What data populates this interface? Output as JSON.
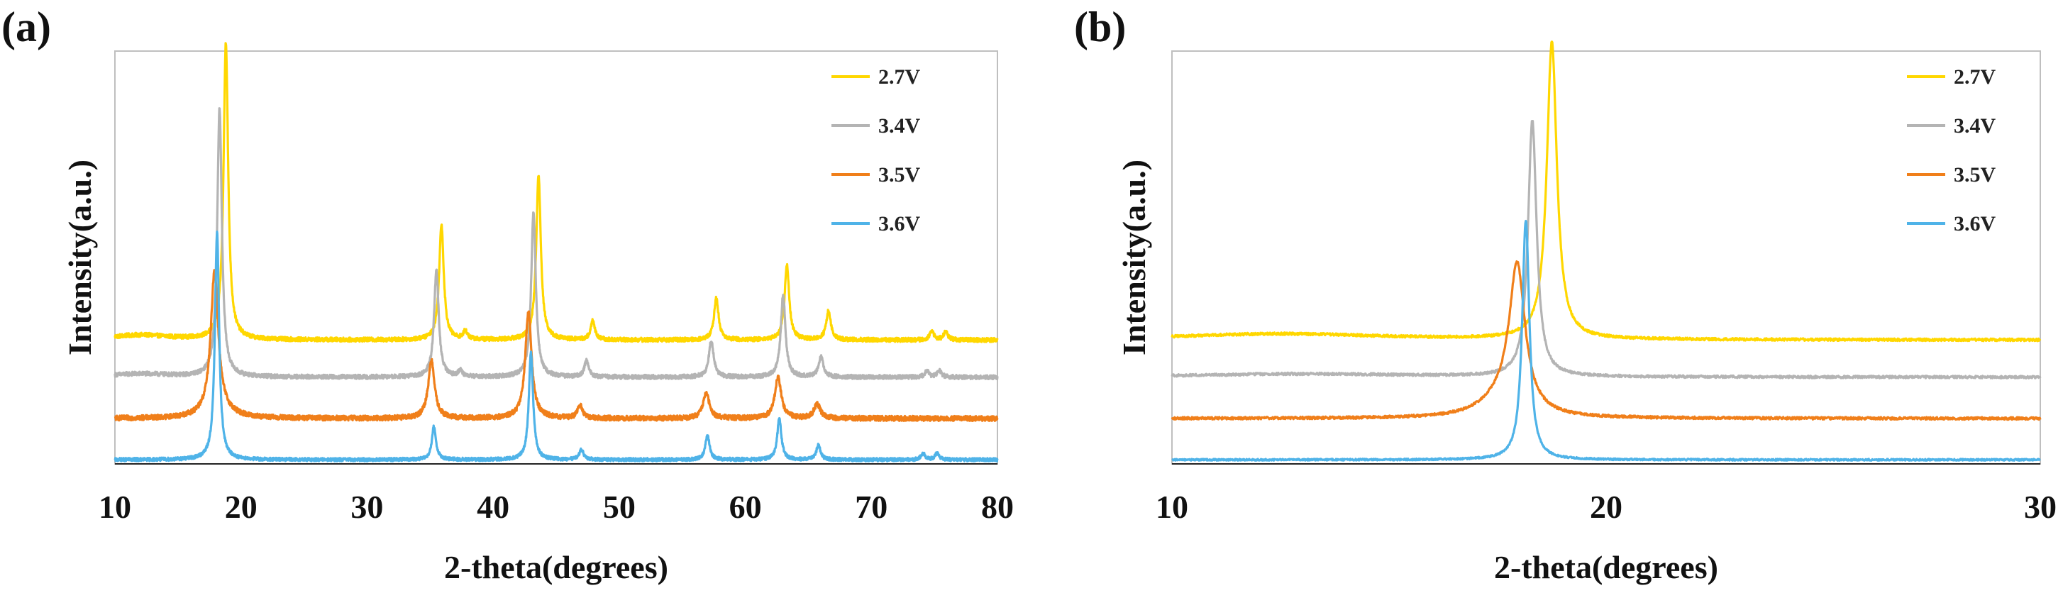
{
  "chart_data": [
    {
      "panel": "(a)",
      "type": "line",
      "xlabel": "2-theta(degrees)",
      "ylabel": "Intensity(a.u.)",
      "xlim": [
        10,
        80
      ],
      "x_ticks": [
        10,
        20,
        30,
        40,
        50,
        60,
        70,
        80
      ],
      "y_ticks_shown": false,
      "grid": false,
      "legend_position": "top-right",
      "series": [
        {
          "name": "2.7V",
          "color": "#FFD700",
          "baseline": 0.3,
          "noise": 0.005,
          "peaks": [
            [
              18.8,
              0.72,
              0.22
            ],
            [
              12.0,
              0.012,
              3.0
            ],
            [
              35.9,
              0.28,
              0.22
            ],
            [
              37.8,
              0.02,
              0.2
            ],
            [
              43.6,
              0.4,
              0.22
            ],
            [
              47.9,
              0.045,
              0.2
            ],
            [
              57.7,
              0.1,
              0.22
            ],
            [
              63.3,
              0.18,
              0.22
            ],
            [
              66.6,
              0.07,
              0.22
            ],
            [
              74.8,
              0.02,
              0.2
            ],
            [
              75.9,
              0.02,
              0.2
            ]
          ]
        },
        {
          "name": "3.4V",
          "color": "#B4B4B4",
          "baseline": 0.21,
          "noise": 0.005,
          "peaks": [
            [
              18.3,
              0.65,
              0.22
            ],
            [
              12.0,
              0.008,
              3.0
            ],
            [
              35.5,
              0.26,
              0.22
            ],
            [
              37.4,
              0.015,
              0.2
            ],
            [
              43.2,
              0.4,
              0.22
            ],
            [
              47.4,
              0.04,
              0.2
            ],
            [
              57.3,
              0.09,
              0.22
            ],
            [
              63.0,
              0.2,
              0.22
            ],
            [
              66.0,
              0.05,
              0.22
            ],
            [
              74.4,
              0.015,
              0.2
            ],
            [
              75.4,
              0.015,
              0.2
            ]
          ]
        },
        {
          "name": "3.5V",
          "color": "#F07F1A",
          "baseline": 0.11,
          "noise": 0.006,
          "peaks": [
            [
              17.9,
              0.34,
              0.35
            ],
            [
              18.15,
              0.02,
              1.2
            ],
            [
              35.1,
              0.14,
              0.3
            ],
            [
              42.8,
              0.26,
              0.3
            ],
            [
              46.9,
              0.03,
              0.25
            ],
            [
              56.9,
              0.06,
              0.3
            ],
            [
              62.6,
              0.1,
              0.3
            ],
            [
              65.7,
              0.035,
              0.3
            ]
          ]
        },
        {
          "name": "3.6V",
          "color": "#4FB3E8",
          "baseline": 0.01,
          "noise": 0.004,
          "peaks": [
            [
              18.1,
              0.55,
              0.2
            ],
            [
              35.3,
              0.08,
              0.2
            ],
            [
              43.0,
              0.26,
              0.2
            ],
            [
              47.0,
              0.025,
              0.2
            ],
            [
              57.0,
              0.06,
              0.2
            ],
            [
              62.7,
              0.1,
              0.2
            ],
            [
              65.8,
              0.035,
              0.2
            ],
            [
              74.1,
              0.015,
              0.2
            ],
            [
              75.2,
              0.015,
              0.2
            ]
          ]
        }
      ]
    },
    {
      "panel": "(b)",
      "type": "line",
      "xlabel": "2-theta(degrees)",
      "ylabel": "Intensity(a.u.)",
      "xlim": [
        10,
        30
      ],
      "x_ticks": [
        10,
        20,
        30
      ],
      "y_ticks_shown": false,
      "grid": false,
      "legend_position": "top-right",
      "series": [
        {
          "name": "2.7V",
          "color": "#FFD700",
          "baseline": 0.3,
          "noise": 0.003,
          "peaks": [
            [
              18.75,
              0.72,
              0.14
            ],
            [
              12.5,
              0.015,
              3.0
            ]
          ]
        },
        {
          "name": "3.4V",
          "color": "#B4B4B4",
          "baseline": 0.21,
          "noise": 0.003,
          "peaks": [
            [
              18.3,
              0.62,
              0.12
            ],
            [
              13.0,
              0.008,
              3.0
            ]
          ]
        },
        {
          "name": "3.5V",
          "color": "#F07F1A",
          "baseline": 0.11,
          "noise": 0.003,
          "peaks": [
            [
              17.95,
              0.35,
              0.22
            ],
            [
              17.6,
              0.04,
              0.6
            ]
          ]
        },
        {
          "name": "3.6V",
          "color": "#4FB3E8",
          "baseline": 0.01,
          "noise": 0.002,
          "peaks": [
            [
              18.15,
              0.58,
              0.1
            ]
          ]
        }
      ]
    }
  ]
}
